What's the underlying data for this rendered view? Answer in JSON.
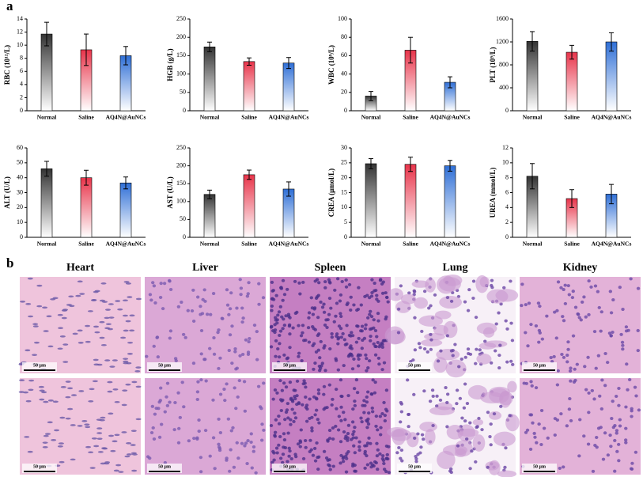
{
  "panels": {
    "a": "a",
    "b": "b"
  },
  "chart_data": [
    {
      "type": "bar",
      "y_label": "RBC (10¹²/L)",
      "categories": [
        "Normal",
        "Saline",
        "AQ4N@AuNCs"
      ],
      "values": [
        11.7,
        9.3,
        8.4
      ],
      "errors": [
        1.8,
        2.4,
        1.4
      ],
      "colors": [
        "#333333",
        "#e8344a",
        "#2f6fd6"
      ],
      "ylim": [
        0,
        14
      ],
      "yticks": [
        0,
        2,
        4,
        6,
        8,
        10,
        12,
        14
      ]
    },
    {
      "type": "bar",
      "y_label": "HGB (g/L)",
      "categories": [
        "Normal",
        "Saline",
        "AQ4N@AuNCs"
      ],
      "values": [
        174,
        134,
        130
      ],
      "errors": [
        13,
        10,
        15
      ],
      "colors": [
        "#333333",
        "#e8344a",
        "#2f6fd6"
      ],
      "ylim": [
        0,
        250
      ],
      "yticks": [
        0,
        50,
        100,
        150,
        200,
        250
      ]
    },
    {
      "type": "bar",
      "y_label": "WBC (10⁹/L)",
      "categories": [
        "Normal",
        "Saline",
        "AQ4N@AuNCs"
      ],
      "values": [
        16,
        66,
        31
      ],
      "errors": [
        5,
        14,
        6
      ],
      "colors": [
        "#333333",
        "#e8344a",
        "#2f6fd6"
      ],
      "ylim": [
        0,
        100
      ],
      "yticks": [
        0,
        20,
        40,
        60,
        80,
        100
      ]
    },
    {
      "type": "bar",
      "y_label": "PLT (10⁹/L)",
      "categories": [
        "Normal",
        "Saline",
        "AQ4N@AuNCs"
      ],
      "values": [
        1210,
        1020,
        1200
      ],
      "errors": [
        170,
        120,
        160
      ],
      "colors": [
        "#333333",
        "#e8344a",
        "#2f6fd6"
      ],
      "ylim": [
        0,
        1600
      ],
      "yticks": [
        0,
        400,
        800,
        1200,
        1600
      ]
    },
    {
      "type": "bar",
      "y_label": "ALT (U/L)",
      "categories": [
        "Normal",
        "Saline",
        "AQ4N@AuNCs"
      ],
      "values": [
        46,
        40,
        36.5
      ],
      "errors": [
        5,
        5,
        4
      ],
      "colors": [
        "#333333",
        "#e8344a",
        "#2f6fd6"
      ],
      "ylim": [
        0,
        60
      ],
      "yticks": [
        0,
        10,
        20,
        30,
        40,
        50,
        60
      ]
    },
    {
      "type": "bar",
      "y_label": "AST (U/L)",
      "categories": [
        "Normal",
        "Saline",
        "AQ4N@AuNCs"
      ],
      "values": [
        120,
        175,
        135
      ],
      "errors": [
        12,
        13,
        20
      ],
      "colors": [
        "#333333",
        "#e8344a",
        "#2f6fd6"
      ],
      "ylim": [
        0,
        250
      ],
      "yticks": [
        0,
        50,
        100,
        150,
        200,
        250
      ]
    },
    {
      "type": "bar",
      "y_label": "CREA (μmol/L)",
      "categories": [
        "Normal",
        "Saline",
        "AQ4N@AuNCs"
      ],
      "values": [
        24.7,
        24.5,
        24
      ],
      "errors": [
        1.7,
        2.4,
        1.8
      ],
      "colors": [
        "#333333",
        "#e8344a",
        "#2f6fd6"
      ],
      "ylim": [
        0,
        30
      ],
      "yticks": [
        0,
        5,
        10,
        15,
        20,
        25,
        30
      ]
    },
    {
      "type": "bar",
      "y_label": "UREA (mmol/L)",
      "categories": [
        "Normal",
        "Saline",
        "AQ4N@AuNCs"
      ],
      "values": [
        8.2,
        5.2,
        5.8
      ],
      "errors": [
        1.7,
        1.2,
        1.3
      ],
      "colors": [
        "#333333",
        "#e8344a",
        "#2f6fd6"
      ],
      "ylim": [
        0,
        12
      ],
      "yticks": [
        0,
        2,
        4,
        6,
        8,
        10,
        12
      ]
    }
  ],
  "histology": {
    "organs": [
      "Heart",
      "Liver",
      "Spleen",
      "Lung",
      "Kidney"
    ],
    "scale_bar_label": "50 μm"
  }
}
